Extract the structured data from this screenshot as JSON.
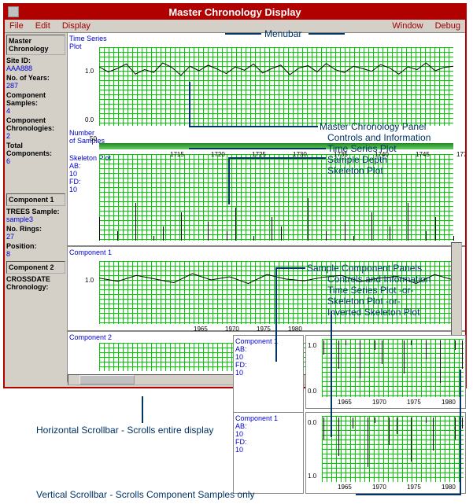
{
  "window": {
    "title": "Master Chronology Display"
  },
  "menubar": {
    "left": [
      "File",
      "Edit",
      "Display"
    ],
    "right": [
      "Window",
      "Debug"
    ]
  },
  "master_panel": {
    "header": "Master\nChronology",
    "fields": [
      {
        "label": "Site ID:",
        "value": "AAA888"
      },
      {
        "label": "No. of Years:",
        "value": "287"
      },
      {
        "label": "Component Samples:",
        "value": "4"
      },
      {
        "label": "Component Chronologies:",
        "value": "2"
      },
      {
        "label": "Total Components:",
        "value": "6"
      }
    ],
    "ts_label": "Time Series\nPlot",
    "depth_label": "Number\nof Samples",
    "depth_value": "50",
    "skel_label": "Skeleton Plot\nAB:\n10\nFD:\n10",
    "y_ticks": [
      "1.0",
      "0.0"
    ],
    "x_ticks": [
      "1715",
      "1720",
      "1725",
      "1730",
      "1735",
      "1740",
      "1745",
      "177"
    ],
    "grid_color": "#00cc00",
    "ts_values": [
      1.05,
      0.96,
      1.02,
      1.1,
      0.92,
      1.0,
      0.95,
      1.12,
      1.04,
      0.9,
      1.06,
      0.98,
      1.08,
      1.01,
      0.93,
      1.05,
      0.99,
      1.1,
      0.94,
      1.02,
      1.08,
      0.91,
      1.03,
      1.07,
      0.96,
      1.11,
      1.0,
      0.95,
      1.06,
      1.02,
      0.97,
      1.09,
      1.03,
      0.92,
      1.05,
      1.0,
      1.12,
      0.98,
      1.04,
      1.06
    ],
    "skel_values": [
      5,
      0,
      2,
      0,
      8,
      0,
      1,
      3,
      0,
      6,
      0,
      0,
      4,
      0,
      2,
      7,
      0,
      1,
      0,
      5,
      3,
      0,
      0,
      9,
      0,
      2,
      0,
      4,
      1,
      0,
      6,
      0,
      3,
      0,
      8,
      0,
      2,
      5,
      0,
      1
    ]
  },
  "component1": {
    "header": "Component 1",
    "label": "Component 1",
    "fields": [
      {
        "label": "TREES Sample:",
        "value": "sample3"
      },
      {
        "label": "No. Rings:",
        "value": "27"
      },
      {
        "label": "Position:",
        "value": "8"
      }
    ],
    "x_ticks": [
      "1965",
      "1970",
      "1975",
      "1980"
    ],
    "y_ticks": [
      "1.0"
    ],
    "ts_values": [
      1.02,
      0.95,
      1.08,
      1.0,
      0.92,
      1.12,
      0.98,
      1.05,
      0.9,
      1.1,
      1.0,
      0.96,
      1.04,
      1.08,
      0.94,
      1.02,
      1.06,
      0.9,
      1.1,
      0.98
    ]
  },
  "component2": {
    "header": "Component 2",
    "label": "Component 2",
    "fields": [
      {
        "label": "CROSSDATE Chronology:",
        "value": ""
      }
    ]
  },
  "overlay_top": {
    "label": "Component 1\nAB:\n10\nFD:\n10",
    "x_ticks": [
      "1965",
      "1970",
      "1975",
      "1980"
    ],
    "y_ticks": [
      "1.0",
      "0.0"
    ],
    "skel_values": [
      3,
      0,
      6,
      1,
      0,
      8,
      0,
      2,
      5,
      0,
      0,
      7,
      1,
      0,
      4,
      0,
      9,
      0,
      2,
      6
    ]
  },
  "overlay_bottom": {
    "label": "Component 1\nAB:\n10\nFD:\n10",
    "x_ticks": [
      "1965",
      "1970",
      "1975",
      "1980"
    ],
    "y_ticks": [
      "0.0",
      "1.0"
    ],
    "skel_values": [
      4,
      0,
      7,
      0,
      2,
      0,
      9,
      1,
      0,
      5,
      3,
      0,
      8,
      0,
      1,
      6,
      0,
      0,
      4,
      2
    ]
  },
  "annotations": {
    "menubar": "Menubar",
    "master_group": [
      "Master Chronology Panel",
      "Controls and Information",
      "Time Series Plot",
      "Sample Depth",
      "Skeleton Plot"
    ],
    "sample_group": [
      "Sample Component Panels",
      "Controls and Information",
      "Time Series Plot -or-",
      "Skeleton Plot -or-",
      "Inverted Skeleton Plot"
    ],
    "hscroll": "Horizontal Scrollbar - Scrolls entire display",
    "vscroll": "Vertical Scrollbar - Scrolls Component Samples only"
  },
  "colors": {
    "title_bg": "#b00000",
    "panel_bg": "#d4d0c8",
    "link": "#0000cc",
    "annot": "#003366",
    "grid": "#00cc00"
  }
}
